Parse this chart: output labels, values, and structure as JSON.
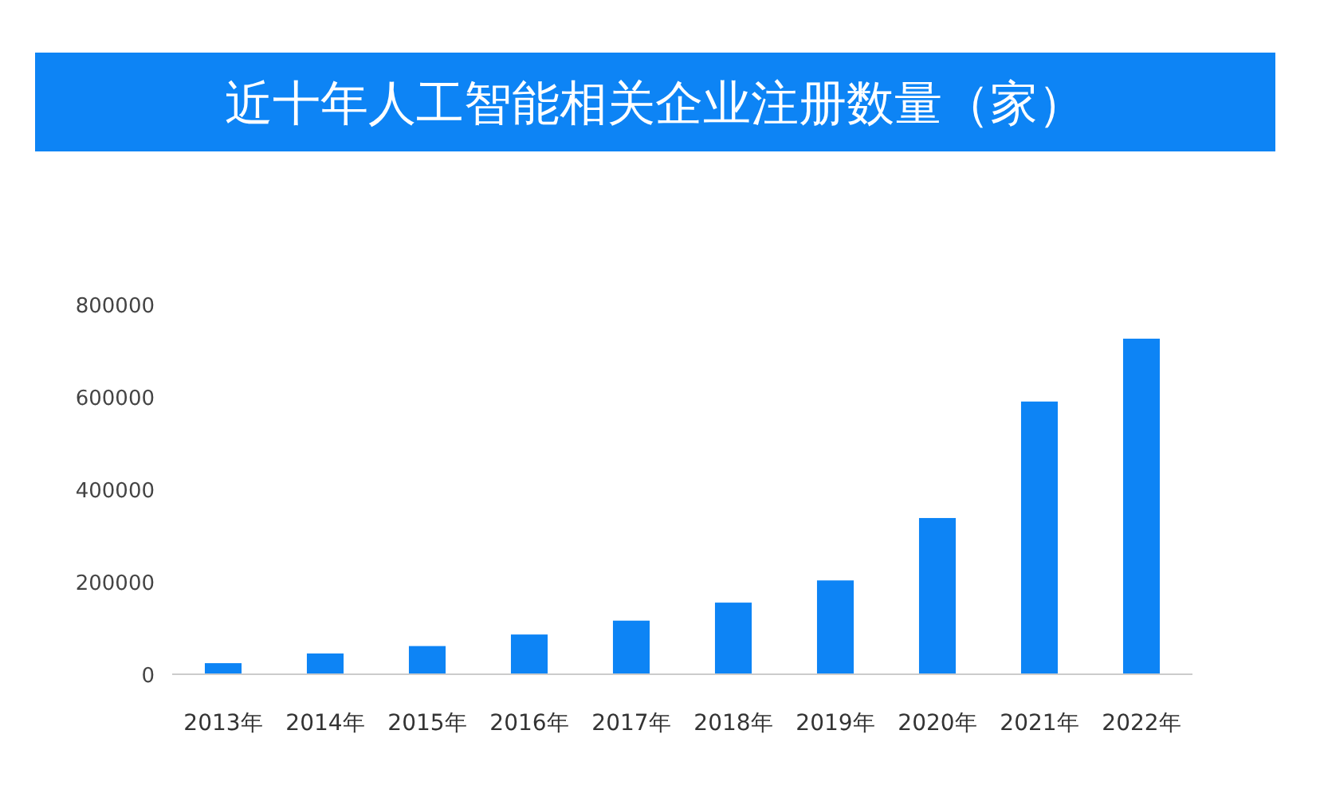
{
  "chart_data": {
    "type": "bar",
    "title": "近十年人工智能相关企业注册数量（家）",
    "categories": [
      "2013年",
      "2014年",
      "2015年",
      "2016年",
      "2017年",
      "2018年",
      "2019年",
      "2020年",
      "2021年",
      "2022年"
    ],
    "values": [
      24000,
      45000,
      61000,
      86000,
      116000,
      155000,
      203000,
      338000,
      590000,
      726000
    ],
    "color": "#0d84f5",
    "ylim": [
      0,
      800000
    ],
    "yticks": [
      0,
      200000,
      400000,
      600000,
      800000
    ],
    "grid": false
  }
}
